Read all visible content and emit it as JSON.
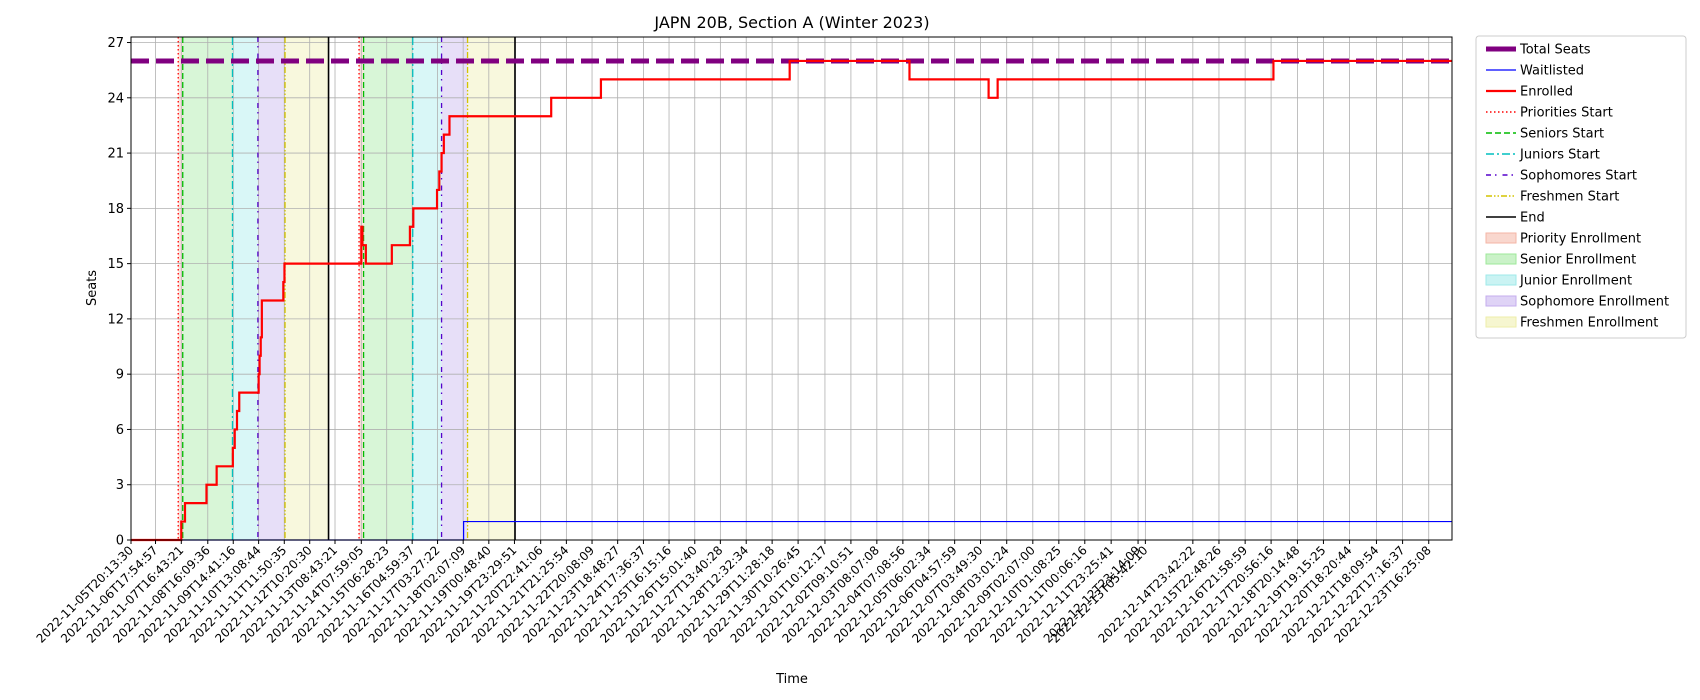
{
  "chart_data": {
    "type": "line",
    "title": "JAPN 20B, Section A (Winter 2023)",
    "xlabel": "Time",
    "ylabel": "Seats",
    "ylim": [
      0,
      27.3
    ],
    "yticks": [
      0,
      3,
      6,
      9,
      12,
      15,
      18,
      21,
      24,
      27
    ],
    "grid": true,
    "legend_position": "outside right, top",
    "x_start": "2022-11-05T20:13:30",
    "x_end": "2022-12-24T13:00:00",
    "x_tick_labels": [
      "2022-11-05T20:13:30",
      "2022-11-06T17:54:57",
      "2022-11-07T16:43:21",
      "2022-11-08T16:09:36",
      "2022-11-09T14:41:16",
      "2022-11-10T13:08:44",
      "2022-11-11T11:50:35",
      "2022-11-12T10:20:30",
      "2022-11-13T08:43:21",
      "2022-11-14T07:59:05",
      "2022-11-15T06:28:23",
      "2022-11-16T04:59:37",
      "2022-11-17T03:27:22",
      "2022-11-18T02:07:09",
      "2022-11-19T00:48:40",
      "2022-11-19T23:29:51",
      "2022-11-20T22:41:06",
      "2022-11-21T21:25:54",
      "2022-11-22T20:08:09",
      "2022-11-23T18:48:27",
      "2022-11-24T17:36:37",
      "2022-11-25T16:15:16",
      "2022-11-26T15:01:40",
      "2022-11-27T13:40:28",
      "2022-11-28T12:32:34",
      "2022-11-29T11:28:18",
      "2022-11-30T10:26:45",
      "2022-12-01T10:12:17",
      "2022-12-02T09:10:51",
      "2022-12-03T08:07:08",
      "2022-12-04T07:08:56",
      "2022-12-05T06:02:34",
      "2022-12-06T04:57:59",
      "2022-12-07T03:49:30",
      "2022-12-08T03:01:24",
      "2022-12-09T02:07:00",
      "2022-12-10T01:08:25",
      "2022-12-11T00:06:16",
      "2022-12-11T23:25:41",
      "2022-12-12T23:14:09",
      "2022-12-13T05:42:10",
      "2022-12-14T23:42:22",
      "2022-12-15T22:48:26",
      "2022-12-16T21:58:59",
      "2022-12-17T20:56:16",
      "2022-12-18T20:14:48",
      "2022-12-19T19:15:25",
      "2022-12-20T18:20:44",
      "2022-12-21T18:09:54",
      "2022-12-22T17:16:37",
      "2022-12-23T16:25:08"
    ],
    "series": [
      {
        "name": "Total Seats",
        "color": "#800080",
        "style": "dashed-thick",
        "points": [
          [
            "2022-11-05T20:13:30",
            26
          ],
          [
            "2022-12-24T13:00:00",
            26
          ]
        ]
      },
      {
        "name": "Waitlisted",
        "color": "#0000ff",
        "style": "step",
        "points": [
          [
            "2022-11-05T20:13:30",
            0
          ],
          [
            "2022-11-18T02:30:00",
            1
          ],
          [
            "2022-12-24T13:00:00",
            1
          ]
        ]
      },
      {
        "name": "Enrolled",
        "color": "#ff0000",
        "style": "step",
        "points": [
          [
            "2022-11-05T20:13:30",
            0
          ],
          [
            "2022-11-07T16:43:00",
            1
          ],
          [
            "2022-11-07T20:00:00",
            2
          ],
          [
            "2022-11-08T15:00:00",
            3
          ],
          [
            "2022-11-09T00:00:00",
            4
          ],
          [
            "2022-11-09T14:20:00",
            5
          ],
          [
            "2022-11-09T16:00:00",
            6
          ],
          [
            "2022-11-09T18:00:00",
            7
          ],
          [
            "2022-11-09T20:00:00",
            8
          ],
          [
            "2022-11-10T13:10:00",
            9
          ],
          [
            "2022-11-10T14:00:00",
            10
          ],
          [
            "2022-11-10T15:00:00",
            11
          ],
          [
            "2022-11-10T16:00:00",
            13
          ],
          [
            "2022-11-11T11:00:00",
            14
          ],
          [
            "2022-11-11T12:00:00",
            15
          ],
          [
            "2022-11-14T08:00:00",
            17
          ],
          [
            "2022-11-14T09:00:00",
            16
          ],
          [
            "2022-11-14T12:00:00",
            15
          ],
          [
            "2022-11-15T11:00:00",
            16
          ],
          [
            "2022-11-16T03:00:00",
            17
          ],
          [
            "2022-11-16T06:00:00",
            18
          ],
          [
            "2022-11-17T03:00:00",
            19
          ],
          [
            "2022-11-17T05:00:00",
            20
          ],
          [
            "2022-11-17T07:00:00",
            21
          ],
          [
            "2022-11-17T09:00:00",
            22
          ],
          [
            "2022-11-17T14:00:00",
            23
          ],
          [
            "2022-11-21T08:00:00",
            24
          ],
          [
            "2022-11-23T04:00:00",
            25
          ],
          [
            "2022-11-30T03:00:00",
            26
          ],
          [
            "2022-12-04T13:00:00",
            25
          ],
          [
            "2022-12-07T11:00:00",
            24
          ],
          [
            "2022-12-07T19:00:00",
            25
          ],
          [
            "2022-12-17T23:00:00",
            26
          ],
          [
            "2022-12-24T13:00:00",
            26
          ]
        ]
      }
    ],
    "markers": [
      {
        "name": "Priorities Start",
        "color": "#ff0000",
        "style": "dotted",
        "x": [
          "2022-11-07T14:00:00",
          "2022-11-14T06:00:00"
        ]
      },
      {
        "name": "Seniors Start",
        "color": "#00bb00",
        "style": "dashed",
        "x": [
          "2022-11-07T18:00:00",
          "2022-11-14T10:00:00"
        ]
      },
      {
        "name": "Juniors Start",
        "color": "#00bfbf",
        "style": "dashdot",
        "x": [
          "2022-11-09T14:00:00",
          "2022-11-16T05:30:00"
        ]
      },
      {
        "name": "Sophomores Start",
        "color": "#5500cc",
        "style": "densedashdot",
        "x": [
          "2022-11-10T12:30:00",
          "2022-11-17T07:00:00"
        ]
      },
      {
        "name": "Freshmen Start",
        "color": "#d4c400",
        "style": "dashdotdot",
        "x": [
          "2022-11-11T12:30:00",
          "2022-11-18T06:00:00"
        ]
      },
      {
        "name": "End",
        "color": "#000000",
        "style": "solid",
        "x": [
          "2022-11-13T03:00:00",
          "2022-11-20T00:00:00"
        ]
      }
    ],
    "spans": [
      {
        "name": "Priority Enrollment",
        "color": "#f4b6a6",
        "ranges": [
          [
            "2022-11-07T14:00:00",
            "2022-11-07T18:00:00"
          ],
          [
            "2022-11-14T06:00:00",
            "2022-11-14T10:00:00"
          ]
        ]
      },
      {
        "name": "Senior Enrollment",
        "color": "#9ee89a",
        "ranges": [
          [
            "2022-11-07T18:00:00",
            "2022-11-09T14:00:00"
          ],
          [
            "2022-11-14T10:00:00",
            "2022-11-16T05:30:00"
          ]
        ]
      },
      {
        "name": "Junior Enrollment",
        "color": "#9feaea",
        "ranges": [
          [
            "2022-11-09T14:00:00",
            "2022-11-10T12:30:00"
          ],
          [
            "2022-11-16T05:30:00",
            "2022-11-17T07:00:00"
          ]
        ]
      },
      {
        "name": "Sophomore Enrollment",
        "color": "#c4aeee",
        "ranges": [
          [
            "2022-11-10T12:30:00",
            "2022-11-11T12:30:00"
          ],
          [
            "2022-11-17T07:00:00",
            "2022-11-18T06:00:00"
          ]
        ]
      },
      {
        "name": "Freshmen Enrollment",
        "color": "#eeeeaa",
        "ranges": [
          [
            "2022-11-11T12:30:00",
            "2022-11-13T03:00:00"
          ],
          [
            "2022-11-18T06:00:00",
            "2022-11-20T00:00:00"
          ]
        ]
      }
    ],
    "legend": [
      "Total Seats",
      "Waitlisted",
      "Enrolled",
      "Priorities Start",
      "Seniors Start",
      "Juniors Start",
      "Sophomores Start",
      "Freshmen Start",
      "End",
      "Priority Enrollment",
      "Senior Enrollment",
      "Junior Enrollment",
      "Sophomore Enrollment",
      "Freshmen Enrollment"
    ]
  }
}
